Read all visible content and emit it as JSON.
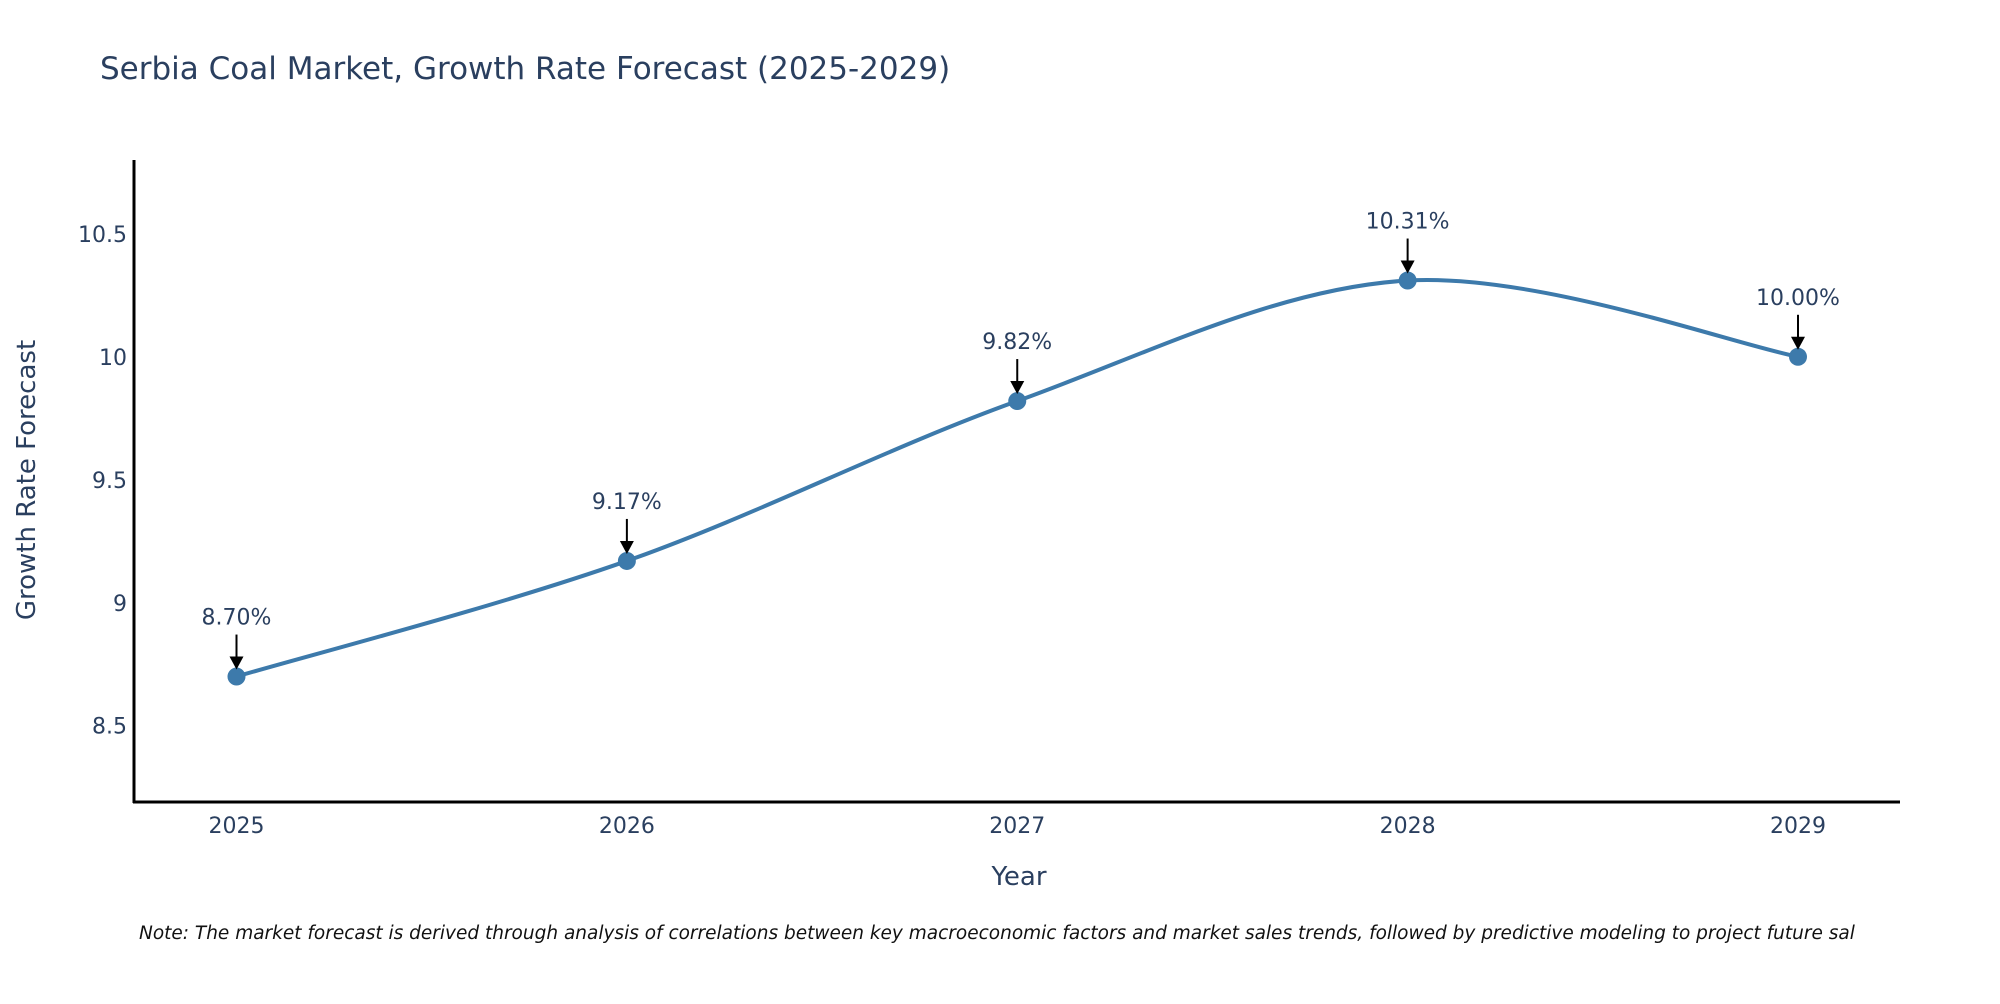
{
  "chart_data": {
    "type": "line",
    "title": "Serbia Coal Market, Growth Rate Forecast (2025-2029)",
    "xlabel": "Year",
    "ylabel": "Growth Rate Forecast",
    "categories": [
      "2025",
      "2026",
      "2027",
      "2028",
      "2029"
    ],
    "series": [
      {
        "name": "Growth Rate Forecast",
        "values": [
          8.7,
          9.17,
          9.82,
          10.31,
          10.0
        ]
      }
    ],
    "data_labels": [
      "8.70%",
      "9.17%",
      "9.82%",
      "10.31%",
      "10.00%"
    ],
    "ylim": [
      8.19,
      10.8
    ],
    "yticks": [
      8.5,
      9,
      9.5,
      10,
      10.5
    ],
    "ytick_labels": [
      "8.5",
      "9",
      "9.5",
      "10",
      "10.5"
    ],
    "grid": false,
    "line_color": "#3d7aab",
    "annotation": "Note: The market forecast is derived through analysis of correlations between key macroeconomic factors and market sales trends, followed by predictive modeling to project future sal"
  }
}
